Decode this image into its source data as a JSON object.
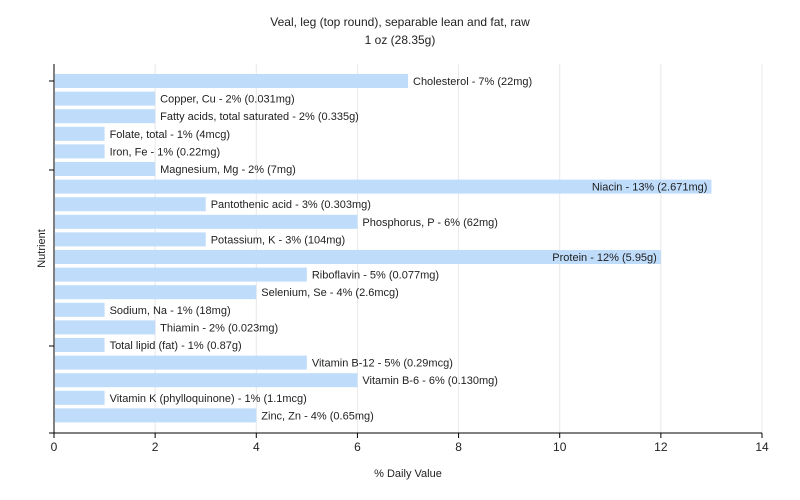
{
  "chart_data": {
    "type": "bar",
    "orientation": "horizontal",
    "title": "Veal, leg (top round), separable lean and fat, raw",
    "subtitle": "1 oz (28.35g)",
    "xlabel": "% Daily Value",
    "ylabel": "Nutrient",
    "xlim": [
      0,
      14
    ],
    "xticks": [
      0,
      2,
      4,
      6,
      8,
      10,
      12,
      14
    ],
    "grid": true,
    "bar_color": "#bfdcfb",
    "categories": [
      "Cholesterol",
      "Copper, Cu",
      "Fatty acids, total saturated",
      "Folate, total",
      "Iron, Fe",
      "Magnesium, Mg",
      "Niacin",
      "Pantothenic acid",
      "Phosphorus, P",
      "Potassium, K",
      "Protein",
      "Riboflavin",
      "Selenium, Se",
      "Sodium, Na",
      "Thiamin",
      "Total lipid (fat)",
      "Vitamin B-12",
      "Vitamin B-6",
      "Vitamin K (phylloquinone)",
      "Zinc, Zn"
    ],
    "values": [
      7,
      2,
      2,
      1,
      1,
      2,
      13,
      3,
      6,
      3,
      12,
      5,
      4,
      1,
      2,
      1,
      5,
      6,
      1,
      4
    ],
    "labels": [
      "Cholesterol - 7% (22mg)",
      "Copper, Cu - 2% (0.031mg)",
      "Fatty acids, total saturated - 2% (0.335g)",
      "Folate, total - 1% (4mcg)",
      "Iron, Fe - 1% (0.22mg)",
      "Magnesium, Mg - 2% (7mg)",
      "Niacin - 13% (2.671mg)",
      "Pantothenic acid - 3% (0.303mg)",
      "Phosphorus, P - 6% (62mg)",
      "Potassium, K - 3% (104mg)",
      "Protein - 12% (5.95g)",
      "Riboflavin - 5% (0.077mg)",
      "Selenium, Se - 4% (2.6mcg)",
      "Sodium, Na - 1% (18mg)",
      "Thiamin - 2% (0.023mg)",
      "Total lipid (fat) - 1% (0.87g)",
      "Vitamin B-12 - 5% (0.29mcg)",
      "Vitamin B-6 - 6% (0.130mg)",
      "Vitamin K (phylloquinone) - 1% (1.1mcg)",
      "Zinc, Zn - 4% (0.65mg)"
    ]
  }
}
